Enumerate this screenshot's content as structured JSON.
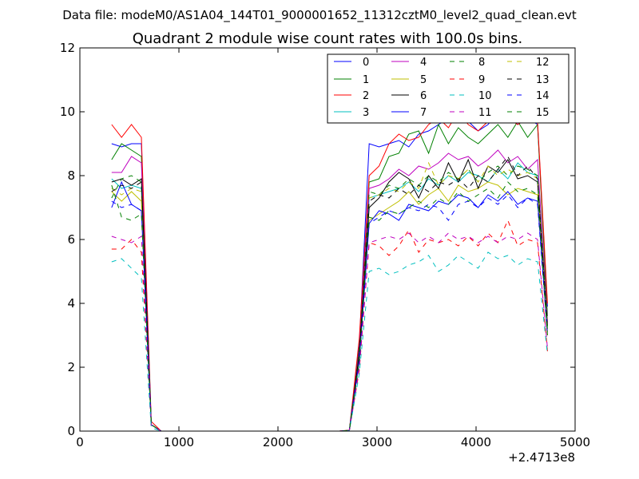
{
  "figure": {
    "suptitle": "Data file: modeM0/AS1A04_144T01_9000001652_11312cztM0_level2_quad_clean.evt"
  },
  "chart_data": {
    "type": "line",
    "title": "Quadrant 2 module wise count rates with 100.0s bins.",
    "xlabel": "",
    "ylabel": "",
    "xlim": [
      0,
      5000
    ],
    "ylim": [
      0,
      12
    ],
    "x_offset_label": "+2.4713e8",
    "xticks": [
      0,
      1000,
      2000,
      3000,
      4000,
      5000
    ],
    "yticks": [
      0,
      2,
      4,
      6,
      8,
      10,
      12
    ],
    "grid": false,
    "legend": {
      "position": "top-right",
      "ncol": 4
    },
    "x": [
      321,
      421,
      521,
      621,
      721,
      821,
      921,
      1021,
      1121,
      1221,
      1321,
      1421,
      1521,
      1621,
      1721,
      1821,
      1921,
      2021,
      2121,
      2221,
      2321,
      2421,
      2521,
      2621,
      2721,
      2821,
      2921,
      3021,
      3121,
      3221,
      3321,
      3421,
      3521,
      3621,
      3721,
      3821,
      3921,
      4021,
      4121,
      4221,
      4321,
      4421,
      4521,
      4621,
      4721
    ],
    "series": [
      {
        "name": "0",
        "color": "#0000ff",
        "dash": "solid",
        "values": [
          9.0,
          8.9,
          9.0,
          9.0,
          0.2,
          0,
          0,
          0,
          0,
          0,
          0,
          0,
          0,
          0,
          0,
          0,
          0,
          0,
          0,
          0,
          0,
          0,
          0,
          0,
          0.02,
          2.7,
          9.0,
          8.9,
          9.0,
          9.1,
          8.9,
          9.3,
          9.4,
          9.6,
          9.8,
          9.9,
          9.7,
          9.4,
          9.6,
          10.0,
          9.9,
          9.6,
          9.8,
          9.6,
          3.9
        ]
      },
      {
        "name": "1",
        "color": "#008000",
        "dash": "solid",
        "values": [
          8.5,
          9.0,
          8.8,
          8.6,
          0.2,
          0,
          0,
          0,
          0,
          0,
          0,
          0,
          0,
          0,
          0,
          0,
          0,
          0,
          0,
          0,
          0,
          0,
          0,
          0,
          0.02,
          2.6,
          7.8,
          7.9,
          8.6,
          8.7,
          9.3,
          9.4,
          8.7,
          9.6,
          9.0,
          9.5,
          9.2,
          9.0,
          9.3,
          9.6,
          9.2,
          9.7,
          9.2,
          9.6,
          3.6
        ]
      },
      {
        "name": "2",
        "color": "#ff0000",
        "dash": "solid",
        "values": [
          9.6,
          9.2,
          9.6,
          9.2,
          0.3,
          0,
          0,
          0,
          0,
          0,
          0,
          0,
          0,
          0,
          0,
          0,
          0,
          0,
          0,
          0,
          0,
          0,
          0,
          0,
          0.03,
          2.9,
          8.0,
          8.3,
          9.0,
          9.3,
          9.1,
          9.2,
          9.6,
          9.8,
          9.5,
          10.0,
          9.6,
          9.4,
          9.7,
          10.0,
          9.8,
          9.6,
          9.8,
          9.7,
          4.0
        ]
      },
      {
        "name": "3",
        "color": "#00bfbf",
        "dash": "solid",
        "values": [
          7.9,
          7.6,
          7.7,
          7.6,
          0.2,
          0,
          0,
          0,
          0,
          0,
          0,
          0,
          0,
          0,
          0,
          0,
          0,
          0,
          0,
          0,
          0,
          0,
          0,
          0,
          0.02,
          2.4,
          7.3,
          7.4,
          7.5,
          7.6,
          7.8,
          7.5,
          7.9,
          7.7,
          8.0,
          7.8,
          8.1,
          8.0,
          7.8,
          8.2,
          7.9,
          8.4,
          8.1,
          8.0,
          3.2
        ]
      },
      {
        "name": "4",
        "color": "#bf00bf",
        "dash": "solid",
        "values": [
          8.1,
          8.1,
          8.6,
          8.4,
          0.2,
          0,
          0,
          0,
          0,
          0,
          0,
          0,
          0,
          0,
          0,
          0,
          0,
          0,
          0,
          0,
          0,
          0,
          0,
          0,
          0.02,
          2.5,
          7.6,
          7.7,
          7.9,
          8.2,
          8.0,
          8.3,
          8.2,
          8.4,
          8.7,
          8.5,
          8.6,
          8.3,
          8.5,
          8.8,
          8.4,
          8.6,
          8.2,
          8.5,
          3.4
        ]
      },
      {
        "name": "5",
        "color": "#bfbf00",
        "dash": "solid",
        "values": [
          7.5,
          7.2,
          7.5,
          7.2,
          0.2,
          0,
          0,
          0,
          0,
          0,
          0,
          0,
          0,
          0,
          0,
          0,
          0,
          0,
          0,
          0,
          0,
          0,
          0,
          0,
          0.02,
          2.3,
          6.6,
          6.8,
          7.0,
          7.2,
          7.5,
          7.1,
          7.4,
          7.6,
          7.2,
          7.7,
          7.5,
          7.6,
          7.8,
          7.7,
          7.4,
          7.6,
          7.5,
          7.4,
          3.0
        ]
      },
      {
        "name": "6",
        "color": "#000000",
        "dash": "solid",
        "values": [
          7.8,
          7.9,
          7.7,
          7.9,
          0.2,
          0,
          0,
          0,
          0,
          0,
          0,
          0,
          0,
          0,
          0,
          0,
          0,
          0,
          0,
          0,
          0,
          0,
          0,
          0,
          0.02,
          2.4,
          7.0,
          7.3,
          7.8,
          8.1,
          7.9,
          7.3,
          8.0,
          7.6,
          8.4,
          7.8,
          8.5,
          7.6,
          8.3,
          8.1,
          8.5,
          7.9,
          8.0,
          7.8,
          3.3
        ]
      },
      {
        "name": "7",
        "color": "#0000ff",
        "dash": "solid",
        "values": [
          7.0,
          7.8,
          7.1,
          6.9,
          0.2,
          0,
          0,
          0,
          0,
          0,
          0,
          0,
          0,
          0,
          0,
          0,
          0,
          0,
          0,
          0,
          0,
          0,
          0,
          0,
          0.02,
          2.2,
          6.5,
          6.9,
          6.8,
          6.6,
          7.1,
          7.0,
          6.9,
          7.2,
          7.1,
          7.4,
          7.3,
          7.0,
          7.4,
          7.2,
          7.5,
          7.1,
          7.3,
          7.2,
          3.1
        ]
      },
      {
        "name": "8",
        "color": "#008000",
        "dash": "dashed",
        "values": [
          7.3,
          7.9,
          8.0,
          7.8,
          0.2,
          0,
          0,
          0,
          0,
          0,
          0,
          0,
          0,
          0,
          0,
          0,
          0,
          0,
          0,
          0,
          0,
          0,
          0,
          0,
          0.02,
          2.4,
          7.5,
          7.4,
          7.7,
          7.6,
          7.9,
          7.7,
          8.0,
          7.8,
          8.1,
          7.9,
          8.2,
          7.8,
          8.1,
          8.3,
          8.0,
          8.3,
          8.2,
          8.0,
          3.2
        ]
      },
      {
        "name": "9",
        "color": "#ff0000",
        "dash": "dashed",
        "values": [
          5.7,
          5.7,
          6.0,
          5.6,
          0.2,
          0,
          0,
          0,
          0,
          0,
          0,
          0,
          0,
          0,
          0,
          0,
          0,
          0,
          0,
          0,
          0,
          0,
          0,
          0,
          0.02,
          1.9,
          5.9,
          5.8,
          5.5,
          5.8,
          6.3,
          5.6,
          6.0,
          5.9,
          6.0,
          5.8,
          6.1,
          5.8,
          6.2,
          5.9,
          6.6,
          5.8,
          6.0,
          5.9,
          2.5
        ]
      },
      {
        "name": "10",
        "color": "#00bfbf",
        "dash": "dashed",
        "values": [
          5.3,
          5.4,
          5.1,
          4.8,
          0.1,
          0,
          0,
          0,
          0,
          0,
          0,
          0,
          0,
          0,
          0,
          0,
          0,
          0,
          0,
          0,
          0,
          0,
          0,
          0,
          0.01,
          1.8,
          5.0,
          5.1,
          4.9,
          5.0,
          5.2,
          5.3,
          5.5,
          5.0,
          5.2,
          5.5,
          5.3,
          5.1,
          5.6,
          5.4,
          5.5,
          5.2,
          5.4,
          5.3,
          2.4
        ]
      },
      {
        "name": "11",
        "color": "#bf00bf",
        "dash": "dashed",
        "values": [
          6.1,
          6.0,
          5.9,
          6.1,
          0.2,
          0,
          0,
          0,
          0,
          0,
          0,
          0,
          0,
          0,
          0,
          0,
          0,
          0,
          0,
          0,
          0,
          0,
          0,
          0,
          0.02,
          2.0,
          5.9,
          6.0,
          6.1,
          6.0,
          6.2,
          5.9,
          6.1,
          5.9,
          6.2,
          6.0,
          6.1,
          5.9,
          6.1,
          5.9,
          6.1,
          6.0,
          6.2,
          6.0,
          2.6
        ]
      },
      {
        "name": "12",
        "color": "#bfbf00",
        "dash": "dashed",
        "values": [
          7.6,
          7.4,
          7.6,
          7.5,
          0.2,
          0,
          0,
          0,
          0,
          0,
          0,
          0,
          0,
          0,
          0,
          0,
          0,
          0,
          0,
          0,
          0,
          0,
          0,
          0,
          0.02,
          2.3,
          7.3,
          7.4,
          7.6,
          7.5,
          7.8,
          7.6,
          8.4,
          7.7,
          8.0,
          7.9,
          8.2,
          7.8,
          8.3,
          8.0,
          8.2,
          8.0,
          8.1,
          7.9,
          3.1
        ]
      },
      {
        "name": "13",
        "color": "#000000",
        "dash": "dashed",
        "values": [
          7.5,
          7.7,
          7.6,
          7.8,
          0.2,
          0,
          0,
          0,
          0,
          0,
          0,
          0,
          0,
          0,
          0,
          0,
          0,
          0,
          0,
          0,
          0,
          0,
          0,
          0,
          0.02,
          2.4,
          7.2,
          7.4,
          7.3,
          7.6,
          7.4,
          7.7,
          7.5,
          7.8,
          7.7,
          7.9,
          7.6,
          8.0,
          7.8,
          8.2,
          8.6,
          8.0,
          8.3,
          7.9,
          3.2
        ]
      },
      {
        "name": "14",
        "color": "#0000ff",
        "dash": "dashed",
        "values": [
          7.2,
          7.0,
          7.1,
          6.9,
          0.2,
          0,
          0,
          0,
          0,
          0,
          0,
          0,
          0,
          0,
          0,
          0,
          0,
          0,
          0,
          0,
          0,
          0,
          0,
          0,
          0.02,
          2.2,
          6.5,
          6.7,
          6.9,
          6.8,
          7.0,
          6.9,
          7.1,
          7.0,
          6.6,
          7.1,
          7.2,
          7.0,
          7.3,
          7.1,
          7.4,
          7.0,
          7.3,
          7.1,
          3.0
        ]
      },
      {
        "name": "15",
        "color": "#008000",
        "dash": "dashed",
        "values": [
          7.7,
          6.7,
          6.6,
          6.8,
          0.2,
          0,
          0,
          0,
          0,
          0,
          0,
          0,
          0,
          0,
          0,
          0,
          0,
          0,
          0,
          0,
          0,
          0,
          0,
          0,
          0.02,
          2.2,
          6.7,
          6.6,
          6.9,
          6.8,
          7.0,
          7.2,
          7.0,
          7.3,
          7.1,
          7.5,
          7.2,
          7.4,
          7.6,
          7.3,
          7.8,
          7.5,
          7.6,
          7.4,
          3.0
        ]
      }
    ]
  }
}
